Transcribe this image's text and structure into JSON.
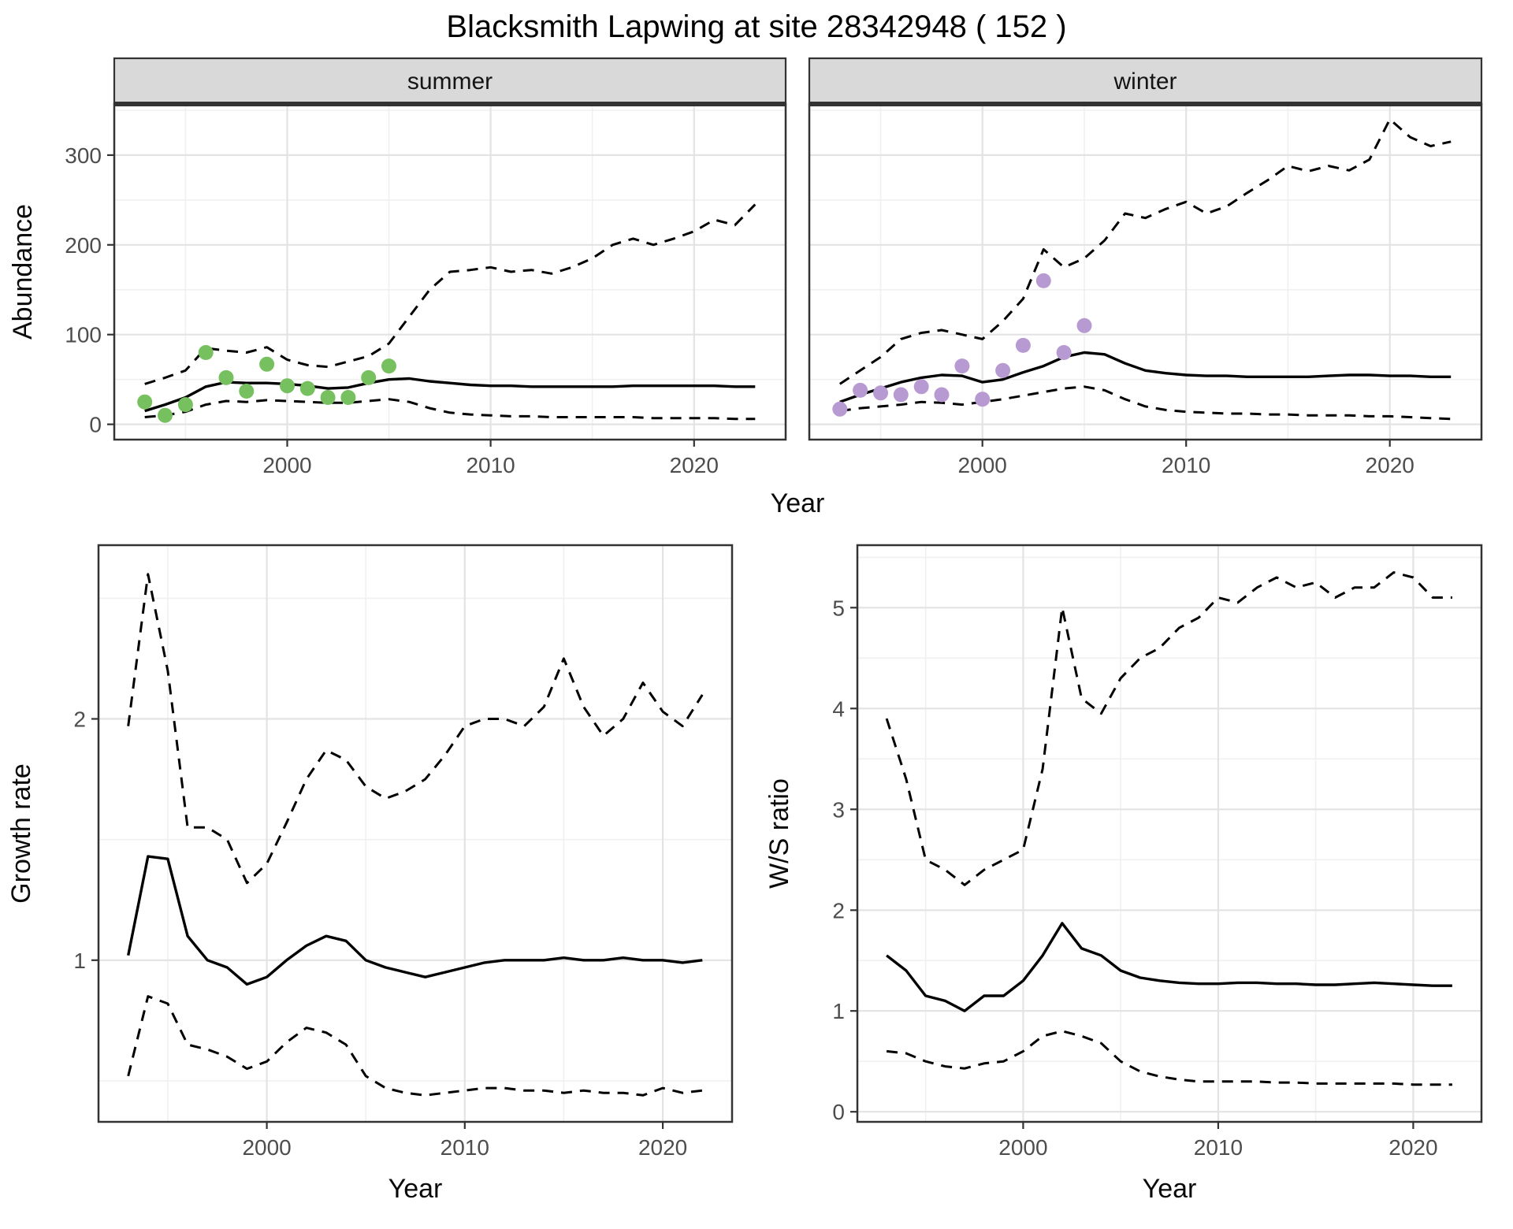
{
  "title": "Blacksmith Lapwing at site 28342948 ( 152 )",
  "colors": {
    "summer_points": "#77c05f",
    "winter_points": "#b79ad1",
    "line": "#000000",
    "strip_bg": "#d9d9d9",
    "background": "#ffffff"
  },
  "chart_data": [
    {
      "type": "line",
      "facet_label": "summer",
      "xlabel": "Year",
      "ylabel": "Abundance",
      "xlim": [
        1991.5,
        2024.5
      ],
      "ylim": [
        -17,
        357
      ],
      "xticks": [
        2000,
        2010,
        2020
      ],
      "xticks_minor": [
        1995,
        2005,
        2015
      ],
      "yticks": [
        0,
        100,
        200,
        300
      ],
      "yticks_minor": [
        50,
        150,
        250,
        350
      ],
      "grid": true,
      "legend": false,
      "x": [
        1993,
        1994,
        1995,
        1996,
        1997,
        1998,
        1999,
        2000,
        2001,
        2002,
        2003,
        2004,
        2005,
        2006,
        2007,
        2008,
        2009,
        2010,
        2011,
        2012,
        2013,
        2014,
        2015,
        2016,
        2017,
        2018,
        2019,
        2020,
        2021,
        2022,
        2023
      ],
      "series": [
        {
          "name": "median",
          "style": "solid",
          "values": [
            15,
            22,
            30,
            42,
            47,
            46,
            46,
            45,
            43,
            40,
            41,
            46,
            50,
            51,
            48,
            46,
            44,
            43,
            43,
            42,
            42,
            42,
            42,
            42,
            43,
            43,
            43,
            43,
            43,
            42,
            42
          ]
        },
        {
          "name": "upper-ci",
          "style": "dashed",
          "values": [
            45,
            52,
            60,
            85,
            82,
            80,
            86,
            72,
            66,
            64,
            70,
            76,
            90,
            120,
            150,
            170,
            172,
            175,
            170,
            172,
            168,
            175,
            185,
            200,
            207,
            200,
            207,
            215,
            228,
            222,
            245
          ]
        },
        {
          "name": "lower-ci",
          "style": "dashed",
          "values": [
            8,
            10,
            14,
            22,
            26,
            25,
            27,
            26,
            25,
            24,
            24,
            26,
            28,
            25,
            18,
            13,
            11,
            10,
            9,
            9,
            8,
            8,
            8,
            8,
            8,
            7,
            7,
            7,
            7,
            6,
            6
          ]
        }
      ],
      "points": {
        "color": "#77c05f",
        "x": [
          1993,
          1994,
          1995,
          1996,
          1997,
          1998,
          1999,
          2000,
          2001,
          2002,
          2003,
          2004,
          2005
        ],
        "y": [
          25,
          10,
          22,
          80,
          52,
          37,
          67,
          43,
          40,
          30,
          30,
          52,
          65
        ]
      }
    },
    {
      "type": "line",
      "facet_label": "winter",
      "xlabel": "Year",
      "xlim": [
        1991.5,
        2024.5
      ],
      "ylim": [
        -17,
        357
      ],
      "xticks": [
        2000,
        2010,
        2020
      ],
      "xticks_minor": [
        1995,
        2005,
        2015
      ],
      "yticks": [
        0,
        100,
        200,
        300
      ],
      "yticks_minor": [
        50,
        150,
        250,
        350
      ],
      "grid": true,
      "legend": false,
      "x": [
        1993,
        1994,
        1995,
        1996,
        1997,
        1998,
        1999,
        2000,
        2001,
        2002,
        2003,
        2004,
        2005,
        2006,
        2007,
        2008,
        2009,
        2010,
        2011,
        2012,
        2013,
        2014,
        2015,
        2016,
        2017,
        2018,
        2019,
        2020,
        2021,
        2022,
        2023
      ],
      "series": [
        {
          "name": "median",
          "style": "solid",
          "values": [
            25,
            33,
            40,
            47,
            52,
            55,
            54,
            47,
            50,
            58,
            65,
            75,
            80,
            78,
            68,
            60,
            57,
            55,
            54,
            54,
            53,
            53,
            53,
            53,
            54,
            55,
            55,
            54,
            54,
            53,
            53
          ]
        },
        {
          "name": "upper-ci",
          "style": "dashed",
          "values": [
            45,
            60,
            75,
            95,
            102,
            105,
            100,
            95,
            115,
            140,
            195,
            175,
            185,
            205,
            235,
            230,
            240,
            248,
            235,
            243,
            258,
            272,
            288,
            282,
            288,
            283,
            295,
            340,
            320,
            310,
            315
          ]
        },
        {
          "name": "lower-ci",
          "style": "dashed",
          "values": [
            15,
            18,
            20,
            22,
            25,
            24,
            22,
            25,
            28,
            32,
            36,
            40,
            42,
            38,
            28,
            20,
            16,
            14,
            13,
            12,
            12,
            11,
            11,
            10,
            10,
            10,
            9,
            9,
            8,
            7,
            6
          ]
        }
      ],
      "points": {
        "color": "#b79ad1",
        "x": [
          1993,
          1994,
          1995,
          1996,
          1997,
          1998,
          1999,
          2000,
          2001,
          2002,
          2003,
          2004,
          2005
        ],
        "y": [
          17,
          38,
          35,
          33,
          42,
          33,
          65,
          28,
          60,
          88,
          160,
          80,
          110
        ]
      }
    },
    {
      "type": "line",
      "xlabel": "Year",
      "ylabel": "Growth rate",
      "xlim": [
        1991.5,
        2023.5
      ],
      "ylim": [
        0.33,
        2.72
      ],
      "xticks": [
        2000,
        2010,
        2020
      ],
      "xticks_minor": [
        1995,
        2005,
        2015
      ],
      "yticks": [
        1,
        2
      ],
      "yticks_minor": [
        0.5,
        1.5,
        2.5
      ],
      "grid": true,
      "legend": false,
      "x": [
        1993,
        1994,
        1995,
        1996,
        1997,
        1998,
        1999,
        2000,
        2001,
        2002,
        2003,
        2004,
        2005,
        2006,
        2007,
        2008,
        2009,
        2010,
        2011,
        2012,
        2013,
        2014,
        2015,
        2016,
        2017,
        2018,
        2019,
        2020,
        2021,
        2022
      ],
      "series": [
        {
          "name": "median",
          "style": "solid",
          "values": [
            1.02,
            1.43,
            1.42,
            1.1,
            1.0,
            0.97,
            0.9,
            0.93,
            1.0,
            1.06,
            1.1,
            1.08,
            1.0,
            0.97,
            0.95,
            0.93,
            0.95,
            0.97,
            0.99,
            1.0,
            1.0,
            1.0,
            1.01,
            1.0,
            1.0,
            1.01,
            1.0,
            1.0,
            0.99,
            1.0
          ]
        },
        {
          "name": "upper-ci",
          "style": "dashed",
          "values": [
            1.97,
            2.6,
            2.2,
            1.55,
            1.55,
            1.5,
            1.32,
            1.4,
            1.57,
            1.75,
            1.87,
            1.83,
            1.72,
            1.67,
            1.7,
            1.75,
            1.85,
            1.97,
            2.0,
            2.0,
            1.97,
            2.05,
            2.25,
            2.05,
            1.93,
            2.0,
            2.15,
            2.03,
            1.97,
            2.1
          ]
        },
        {
          "name": "lower-ci",
          "style": "dashed",
          "values": [
            0.52,
            0.85,
            0.82,
            0.65,
            0.63,
            0.6,
            0.55,
            0.58,
            0.66,
            0.72,
            0.7,
            0.65,
            0.52,
            0.47,
            0.45,
            0.44,
            0.45,
            0.46,
            0.47,
            0.47,
            0.46,
            0.46,
            0.45,
            0.46,
            0.45,
            0.45,
            0.44,
            0.47,
            0.45,
            0.46
          ]
        }
      ]
    },
    {
      "type": "line",
      "xlabel": "Year",
      "ylabel": "W/S ratio",
      "xlim": [
        1991.5,
        2023.5
      ],
      "ylim": [
        -0.1,
        5.62
      ],
      "xticks": [
        2000,
        2010,
        2020
      ],
      "xticks_minor": [
        1995,
        2005,
        2015
      ],
      "yticks": [
        0,
        1,
        2,
        3,
        4,
        5
      ],
      "yticks_minor": [
        0.5,
        1.5,
        2.5,
        3.5,
        4.5,
        5.5
      ],
      "grid": true,
      "legend": false,
      "x": [
        1993,
        1994,
        1995,
        1996,
        1997,
        1998,
        1999,
        2000,
        2001,
        2002,
        2003,
        2004,
        2005,
        2006,
        2007,
        2008,
        2009,
        2010,
        2011,
        2012,
        2013,
        2014,
        2015,
        2016,
        2017,
        2018,
        2019,
        2020,
        2021,
        2022
      ],
      "series": [
        {
          "name": "median",
          "style": "solid",
          "values": [
            1.55,
            1.4,
            1.15,
            1.1,
            1.0,
            1.15,
            1.15,
            1.3,
            1.55,
            1.87,
            1.62,
            1.55,
            1.4,
            1.33,
            1.3,
            1.28,
            1.27,
            1.27,
            1.28,
            1.28,
            1.27,
            1.27,
            1.26,
            1.26,
            1.27,
            1.28,
            1.27,
            1.26,
            1.25,
            1.25
          ]
        },
        {
          "name": "upper-ci",
          "style": "dashed",
          "values": [
            3.9,
            3.3,
            2.5,
            2.4,
            2.25,
            2.4,
            2.5,
            2.6,
            3.4,
            5.0,
            4.1,
            3.95,
            4.3,
            4.5,
            4.6,
            4.8,
            4.9,
            5.1,
            5.05,
            5.2,
            5.3,
            5.2,
            5.25,
            5.1,
            5.2,
            5.2,
            5.35,
            5.3,
            5.1,
            5.1
          ]
        },
        {
          "name": "lower-ci",
          "style": "dashed",
          "values": [
            0.6,
            0.58,
            0.5,
            0.45,
            0.43,
            0.48,
            0.5,
            0.6,
            0.75,
            0.8,
            0.75,
            0.68,
            0.5,
            0.4,
            0.35,
            0.32,
            0.3,
            0.3,
            0.3,
            0.3,
            0.29,
            0.29,
            0.28,
            0.28,
            0.28,
            0.28,
            0.28,
            0.27,
            0.27,
            0.27
          ]
        }
      ]
    }
  ]
}
